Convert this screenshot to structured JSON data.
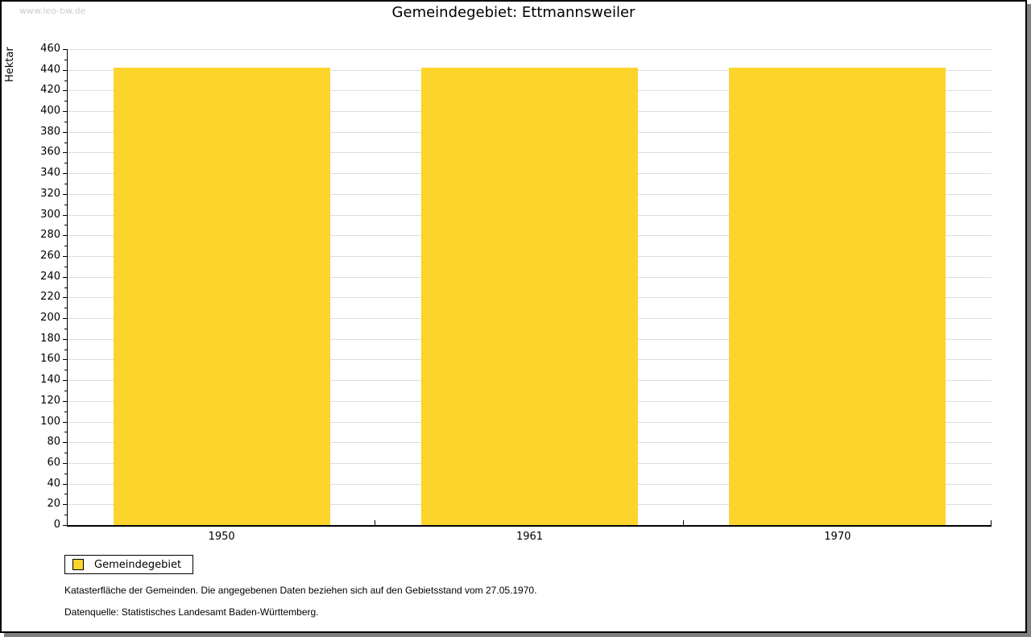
{
  "watermark": "www.leo-bw.de",
  "header": {
    "title": "Gemeindegebiet: Ettmannsweiler"
  },
  "chart_data": {
    "type": "bar",
    "title": "Gemeindegebiet: Ettmannsweiler",
    "ylabel": "Hektar",
    "xlabel": "",
    "categories": [
      "1950",
      "1961",
      "1970"
    ],
    "series": [
      {
        "name": "Gemeindegebiet",
        "values": [
          442,
          442,
          442
        ]
      }
    ],
    "ylim": [
      0,
      460
    ],
    "ytick_step": 20,
    "yminor_step": 10,
    "grid": true,
    "legend_position": "bottom-left",
    "bar_color": "#FCD42C"
  },
  "legend": {
    "items": [
      {
        "label": "Gemeindegebiet",
        "color": "#FCD42C"
      }
    ]
  },
  "notes": {
    "line1": "Katasterfläche der Gemeinden. Die angegebenen Daten beziehen sich auf den Gebietsstand vom 27.05.1970.",
    "line2": "Datenquelle: Statistisches Landesamt Baden-Württemberg."
  },
  "colors": {
    "bar": "#FCD42C",
    "grid": "#DCDCDC",
    "axis": "#000000",
    "watermark": "#CCCCCC",
    "shadow": "#808080"
  }
}
